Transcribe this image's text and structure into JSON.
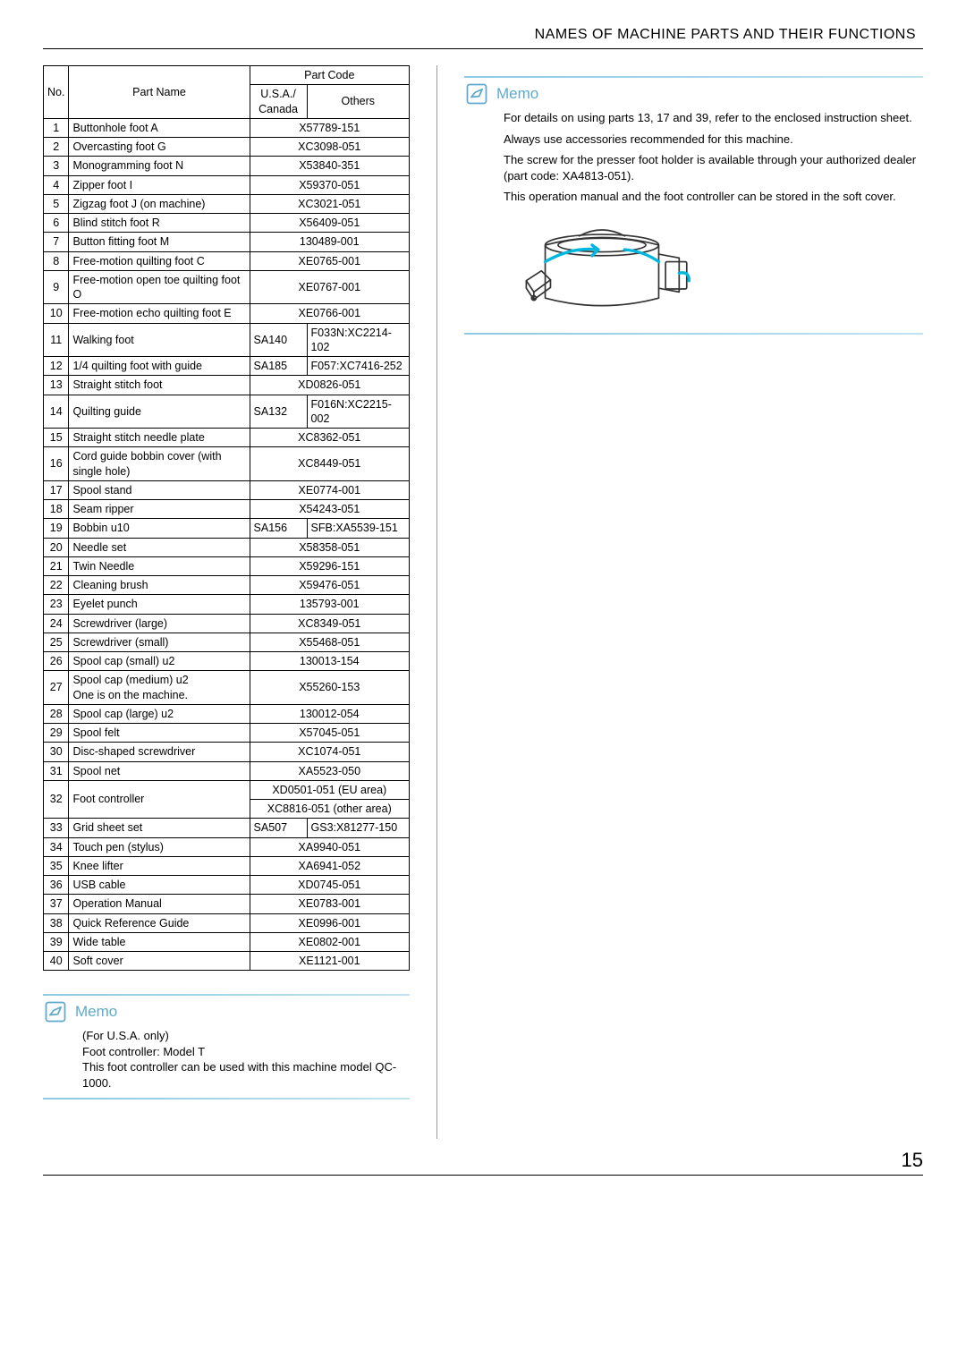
{
  "page": {
    "title": "NAMES OF MACHINE PARTS AND THEIR FUNCTIONS",
    "number": "15"
  },
  "table": {
    "headers": {
      "no": "No.",
      "part_name": "Part Name",
      "part_code": "Part Code",
      "usa": "U.S.A./\nCanada",
      "others": "Others"
    },
    "rows": [
      {
        "no": "1",
        "name": "Buttonhole foot  A",
        "code": "X57789-151"
      },
      {
        "no": "2",
        "name": "Overcasting foot  G",
        "code": "XC3098-051"
      },
      {
        "no": "3",
        "name": "Monogramming foot  N",
        "code": "X53840-351"
      },
      {
        "no": "4",
        "name": "Zipper foot  I",
        "code": "X59370-051"
      },
      {
        "no": "5",
        "name": "Zigzag foot  J  (on machine)",
        "code": "XC3021-051"
      },
      {
        "no": "6",
        "name": "Blind stitch foot  R",
        "code": "X56409-051"
      },
      {
        "no": "7",
        "name": "Button fitting foot  M",
        "code": "130489-001"
      },
      {
        "no": "8",
        "name": "Free-motion quilting foot  C",
        "code": "XE0765-001"
      },
      {
        "no": "9",
        "name": "Free-motion open toe quilting foot  O",
        "code": "XE0767-001"
      },
      {
        "no": "10",
        "name": "Free-motion echo quilting foot E",
        "code": "XE0766-001"
      },
      {
        "no": "11",
        "name": "Walking foot",
        "usa": "SA140",
        "other": "F033N:XC2214-102"
      },
      {
        "no": "12",
        "name": "1/4  quilting foot with guide",
        "usa": "SA185",
        "other": "F057:XC7416-252"
      },
      {
        "no": "13",
        "name": "Straight stitch foot",
        "code": "XD0826-051"
      },
      {
        "no": "14",
        "name": "Quilting guide",
        "usa": "SA132",
        "other": "F016N:XC2215-002"
      },
      {
        "no": "15",
        "name": "Straight stitch needle plate",
        "code": "XC8362-051"
      },
      {
        "no": "16",
        "name": "Cord guide bobbin cover (with single hole)",
        "code": "XC8449-051"
      },
      {
        "no": "17",
        "name": "Spool stand",
        "code": "XE0774-001"
      },
      {
        "no": "18",
        "name": "Seam ripper",
        "code": "X54243-051"
      },
      {
        "no": "19",
        "name": "Bobbin  u10",
        "usa": "SA156",
        "other": "SFB:XA5539-151"
      },
      {
        "no": "20",
        "name": "Needle set",
        "code": "X58358-051"
      },
      {
        "no": "21",
        "name": "Twin Needle",
        "code": "X59296-151"
      },
      {
        "no": "22",
        "name": "Cleaning brush",
        "code": "X59476-051"
      },
      {
        "no": "23",
        "name": "Eyelet punch",
        "code": "135793-001"
      },
      {
        "no": "24",
        "name": "Screwdriver (large)",
        "code": "XC8349-051"
      },
      {
        "no": "25",
        "name": "Screwdriver (small)",
        "code": "X55468-051"
      },
      {
        "no": "26",
        "name": "Spool cap (small)  u2",
        "code": "130013-154"
      },
      {
        "no": "27",
        "name": "Spool cap (medium)  u2\nOne is on the machine.",
        "code": "X55260-153"
      },
      {
        "no": "28",
        "name": "Spool cap (large)  u2",
        "code": "130012-054"
      },
      {
        "no": "29",
        "name": "Spool felt",
        "code": "X57045-051"
      },
      {
        "no": "30",
        "name": "Disc-shaped screwdriver",
        "code": "XC1074-051"
      },
      {
        "no": "31",
        "name": "Spool net",
        "code": "XA5523-050"
      },
      {
        "no": "32",
        "name": "Foot controller",
        "stack": [
          "XD0501-051 (EU area)",
          "XC8816-051 (other area)"
        ]
      },
      {
        "no": "33",
        "name": "Grid sheet set",
        "usa": "SA507",
        "other": "GS3:X81277-150"
      },
      {
        "no": "34",
        "name": "Touch pen (stylus)",
        "code": "XA9940-051"
      },
      {
        "no": "35",
        "name": "Knee lifter",
        "code": "XA6941-052"
      },
      {
        "no": "36",
        "name": "USB cable",
        "code": "XD0745-051"
      },
      {
        "no": "37",
        "name": "Operation Manual",
        "code": "XE0783-001"
      },
      {
        "no": "38",
        "name": "Quick Reference Guide",
        "code": "XE0996-001"
      },
      {
        "no": "39",
        "name": "Wide table",
        "code": "XE0802-001"
      },
      {
        "no": "40",
        "name": "Soft cover",
        "code": "XE1121-001"
      }
    ]
  },
  "memo_left": {
    "title": "Memo",
    "lines": [
      "(For U.S.A. only)",
      "Foot controller: Model T",
      "This foot controller can be used with this machine model QC-1000."
    ]
  },
  "memo_right": {
    "title": "Memo",
    "paragraphs": [
      "For details on using parts 13, 17 and 39, refer to the enclosed instruction sheet.",
      "Always use accessories recommended for this machine.",
      "The screw for the presser foot holder is available through your authorized dealer (part code: XA4813-051).",
      "This operation manual and the foot controller can be stored in the soft cover."
    ]
  },
  "colors": {
    "memo_accent": "#5ea9cc",
    "rule_gradient_start": "#8fc9e3",
    "rule_gradient_end": "#bfe3f1",
    "illus_stroke": "#333",
    "illus_accent": "#00b7e0"
  }
}
